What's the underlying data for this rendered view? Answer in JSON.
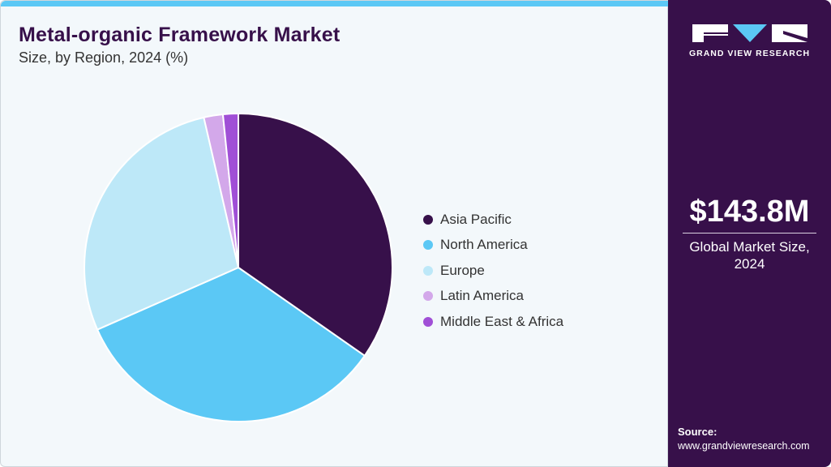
{
  "header": {
    "title": "Metal-organic Framework Market",
    "subtitle": "Size, by Region, 2024 (%)"
  },
  "sidebar": {
    "brand": "GRAND VIEW RESEARCH",
    "market_value": "$143.8M",
    "market_caption_line1": "Global Market Size,",
    "market_caption_line2": "2024",
    "source_label": "Source:",
    "source_url": "www.grandviewresearch.com"
  },
  "colors": {
    "accent_bar": "#5bc8f5",
    "sidebar_bg": "#37104a"
  },
  "legend": [
    {
      "label": "Asia Pacific",
      "color": "#37104a"
    },
    {
      "label": "North America",
      "color": "#5bc8f5"
    },
    {
      "label": "Europe",
      "color": "#bde8f8"
    },
    {
      "label": "Latin America",
      "color": "#d3a8ea"
    },
    {
      "label": "Middle East & Africa",
      "color": "#a04fd6"
    }
  ],
  "chart_data": {
    "type": "pie",
    "title": "Metal-organic Framework Market Size, by Region, 2024 (%)",
    "categories": [
      "Asia Pacific",
      "North America",
      "Europe",
      "Latin America",
      "Middle East & Africa"
    ],
    "values": [
      34.7,
      33.7,
      28.0,
      2.0,
      1.6
    ],
    "colors": [
      "#37104a",
      "#5bc8f5",
      "#bde8f8",
      "#d3a8ea",
      "#a04fd6"
    ],
    "start_angle_deg": 0,
    "direction": "clockwise",
    "legend_position": "right",
    "total_market_size": "$143.8M"
  }
}
